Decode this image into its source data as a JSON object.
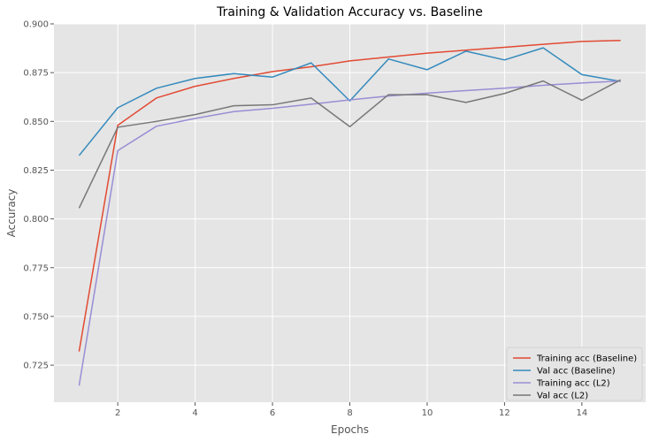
{
  "chart_data": {
    "type": "line",
    "title": "Training & Validation Accuracy vs. Baseline",
    "xlabel": "Epochs",
    "ylabel": "Accuracy",
    "xlim": [
      0.35,
      15.65
    ],
    "ylim": [
      0.706,
      0.9
    ],
    "xticks": [
      2,
      4,
      6,
      8,
      10,
      12,
      14
    ],
    "yticks": [
      0.725,
      0.75,
      0.775,
      0.8,
      0.825,
      0.85,
      0.875,
      0.9
    ],
    "ytick_labels": [
      "0.725",
      "0.750",
      "0.775",
      "0.800",
      "0.825",
      "0.850",
      "0.875",
      "0.900"
    ],
    "grid": true,
    "legend_position": "lower-right",
    "x": [
      1,
      2,
      3,
      4,
      5,
      6,
      7,
      8,
      9,
      10,
      11,
      12,
      13,
      14,
      15
    ],
    "series": [
      {
        "name": "Training acc (Baseline)",
        "color": "#E24A33",
        "values": [
          0.732,
          0.848,
          0.862,
          0.868,
          0.872,
          0.8755,
          0.878,
          0.881,
          0.883,
          0.885,
          0.8865,
          0.888,
          0.8895,
          0.891,
          0.8915
        ]
      },
      {
        "name": "Val acc (Baseline)",
        "color": "#348ABD",
        "values": [
          0.8325,
          0.857,
          0.867,
          0.872,
          0.8745,
          0.8727,
          0.88,
          0.8605,
          0.882,
          0.8765,
          0.886,
          0.8815,
          0.8877,
          0.874,
          0.8705
        ]
      },
      {
        "name": "Training acc (L2)",
        "color": "#988ED5",
        "values": [
          0.7145,
          0.835,
          0.8475,
          0.8515,
          0.855,
          0.8567,
          0.8588,
          0.861,
          0.863,
          0.8645,
          0.8658,
          0.867,
          0.8685,
          0.8697,
          0.8707
        ]
      },
      {
        "name": "Val acc (L2)",
        "color": "#777777",
        "values": [
          0.8055,
          0.847,
          0.85,
          0.8535,
          0.858,
          0.8585,
          0.862,
          0.8473,
          0.8637,
          0.8637,
          0.8597,
          0.8643,
          0.8707,
          0.8608,
          0.8713
        ]
      }
    ]
  }
}
